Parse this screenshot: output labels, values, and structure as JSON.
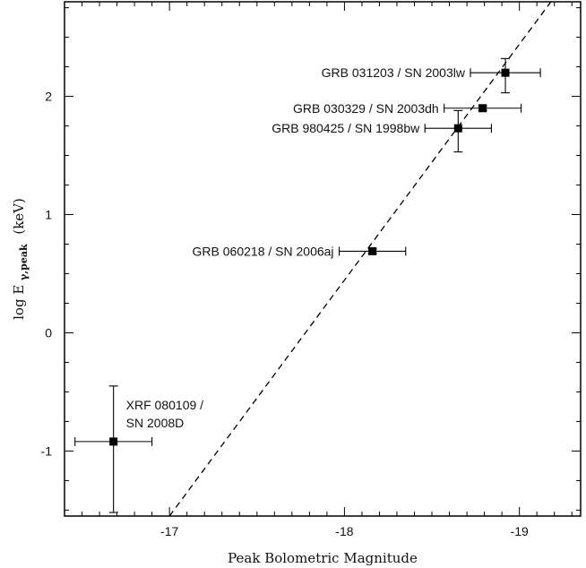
{
  "chart_data": {
    "type": "scatter",
    "xlabel": "Peak Bolometric Magnitude",
    "ylabel_main": "log E",
    "ylabel_sub": "γ,peak",
    "ylabel_unit": "(keV)",
    "xlim": [
      -16.4,
      -19.35
    ],
    "ylim": [
      -1.55,
      2.8
    ],
    "x_ticks": [
      -17,
      -18,
      -19
    ],
    "x_tick_labels": [
      "-17",
      "-18",
      "-19"
    ],
    "y_ticks": [
      -1,
      0,
      1,
      2
    ],
    "y_tick_labels": [
      "-1",
      "0",
      "1",
      "2"
    ],
    "fit_line": {
      "style": "dashed",
      "x": [
        -17.0,
        -19.18
      ],
      "y": [
        -1.55,
        2.8
      ]
    },
    "points": [
      {
        "label": "GRB 031203 / SN 2003lw",
        "x": -18.92,
        "y": 2.2,
        "xerr": 0.2,
        "yerr": [
          0.17,
          0.12
        ]
      },
      {
        "label": "GRB 030329 / SN 2003dh",
        "x": -18.79,
        "y": 1.9,
        "xerr": 0.22,
        "yerr": [
          0.02,
          0.02
        ]
      },
      {
        "label": "GRB 980425 / SN 1998bw",
        "x": -18.65,
        "y": 1.73,
        "xerr": 0.19,
        "yerr": [
          0.2,
          0.15
        ]
      },
      {
        "label": "GRB 060218 / SN 2006aj",
        "x": -18.16,
        "y": 0.69,
        "xerr": 0.19,
        "yerr": [
          0.02,
          0.02
        ]
      },
      {
        "label": "XRF 080109 / SN 2008D",
        "label_lines": [
          "XRF 080109 /",
          "SN 2008D"
        ],
        "x": -16.68,
        "y": -0.92,
        "xerr": 0.22,
        "yerr": [
          0.6,
          0.47
        ]
      }
    ]
  }
}
